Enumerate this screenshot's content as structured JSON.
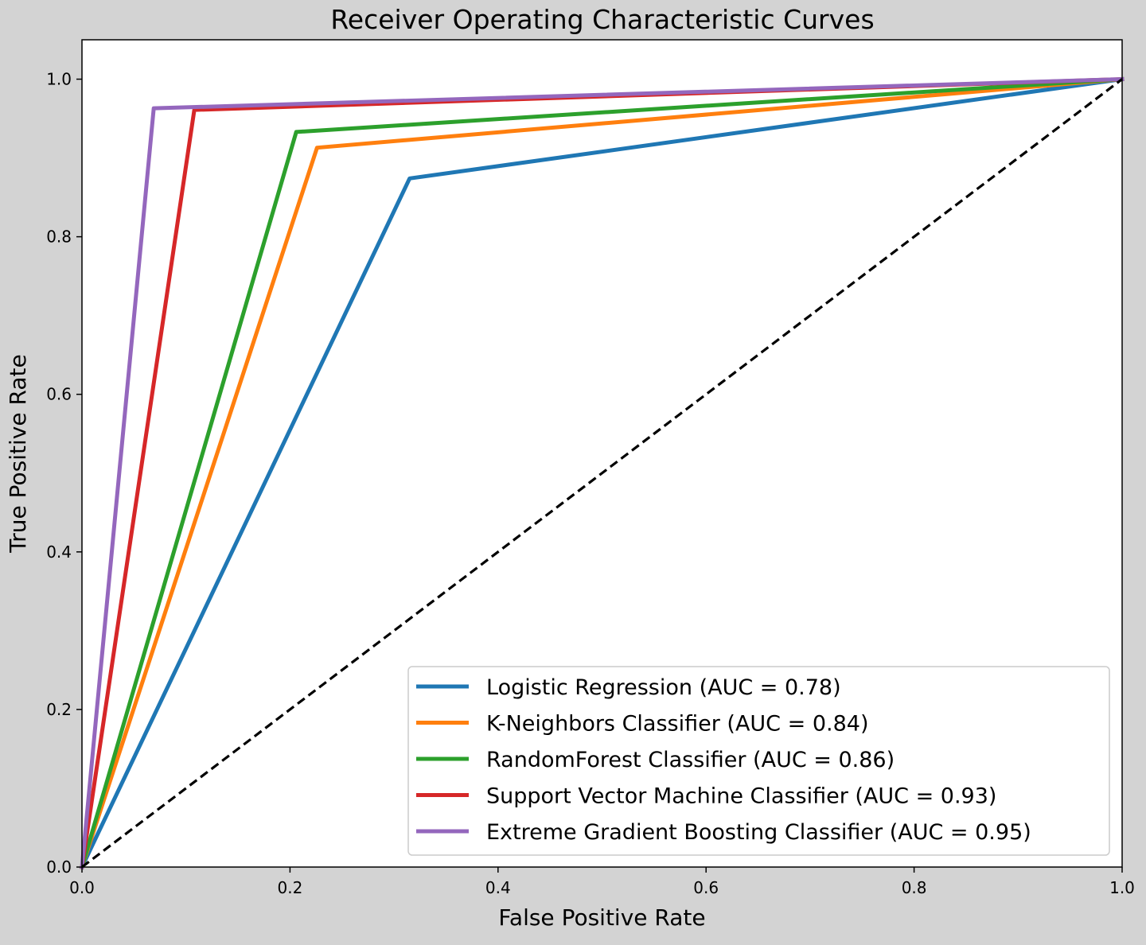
{
  "figure": {
    "background": "#d3d3d3",
    "axes_background": "#ffffff"
  },
  "chart_data": {
    "type": "line",
    "title": "Receiver Operating Characteristic Curves",
    "xlabel": "False Positive Rate",
    "ylabel": "True Positive Rate",
    "xlim": [
      0.0,
      1.0
    ],
    "ylim": [
      0.0,
      1.05
    ],
    "xticks": [
      0.0,
      0.2,
      0.4,
      0.6,
      0.8,
      1.0
    ],
    "xtick_labels": [
      "0.0",
      "0.2",
      "0.4",
      "0.6",
      "0.8",
      "1.0"
    ],
    "yticks": [
      0.0,
      0.2,
      0.4,
      0.6,
      0.8,
      1.0
    ],
    "ytick_labels": [
      "0.0",
      "0.2",
      "0.4",
      "0.6",
      "0.8",
      "1.0"
    ],
    "grid": false,
    "legend_position": "lower-right",
    "series": [
      {
        "name": "Logistic Regression (AUC = 0.78)",
        "color": "#1f77b4",
        "x": [
          0.0,
          0.315,
          1.0
        ],
        "y": [
          0.0,
          0.874,
          1.0
        ]
      },
      {
        "name": "K-Neighbors Classifier (AUC = 0.84)",
        "color": "#ff7f0e",
        "x": [
          0.0,
          0.226,
          1.0
        ],
        "y": [
          0.0,
          0.913,
          1.0
        ]
      },
      {
        "name": "RandomForest Classifier (AUC = 0.86)",
        "color": "#2ca02c",
        "x": [
          0.0,
          0.206,
          1.0
        ],
        "y": [
          0.0,
          0.933,
          1.0
        ]
      },
      {
        "name": "Support Vector Machine Classifier (AUC = 0.93)",
        "color": "#d62728",
        "x": [
          0.0,
          0.108,
          1.0
        ],
        "y": [
          0.0,
          0.961,
          1.0
        ]
      },
      {
        "name": "Extreme Gradient Boosting Classifier (AUC = 0.95)",
        "color": "#9467bd",
        "x": [
          0.0,
          0.069,
          1.0
        ],
        "y": [
          0.0,
          0.963,
          1.0
        ]
      }
    ],
    "reference_line": {
      "color": "#000000",
      "style": "dashed",
      "x": [
        0.0,
        1.0
      ],
      "y": [
        0.0,
        1.0
      ]
    }
  }
}
